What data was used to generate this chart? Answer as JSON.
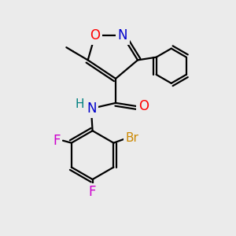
{
  "bg_color": "#ebebeb",
  "atom_colors": {
    "O": "#ff0000",
    "N_isoxazole": "#0000cc",
    "N_amide": "#0000cc",
    "H": "#008080",
    "F": "#cc00cc",
    "Br": "#cc8800",
    "C": "#000000"
  },
  "bond_color": "#000000",
  "bond_width": 1.6,
  "font_size_atoms": 12
}
